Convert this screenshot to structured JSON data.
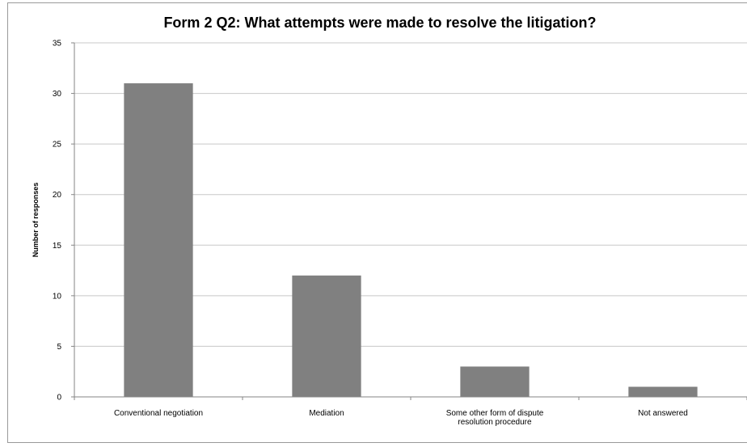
{
  "chart_data": {
    "type": "bar",
    "title": "Form 2 Q2: What attempts were made to resolve the litigation?",
    "xlabel": "",
    "ylabel": "Number of responses",
    "categories": [
      [
        "Conventional negotiation"
      ],
      [
        "Mediation"
      ],
      [
        "Some other form of dispute",
        "resolution procedure"
      ],
      [
        "Not answered"
      ]
    ],
    "values": [
      31,
      12,
      3,
      1
    ],
    "ylim": [
      0,
      35
    ],
    "yticks": [
      0,
      5,
      10,
      15,
      20,
      25,
      30,
      35
    ],
    "grid": true,
    "legend": "none",
    "bar_color": "#808080",
    "grid_color": "#c8c8c8",
    "axis_color": "#868686"
  }
}
